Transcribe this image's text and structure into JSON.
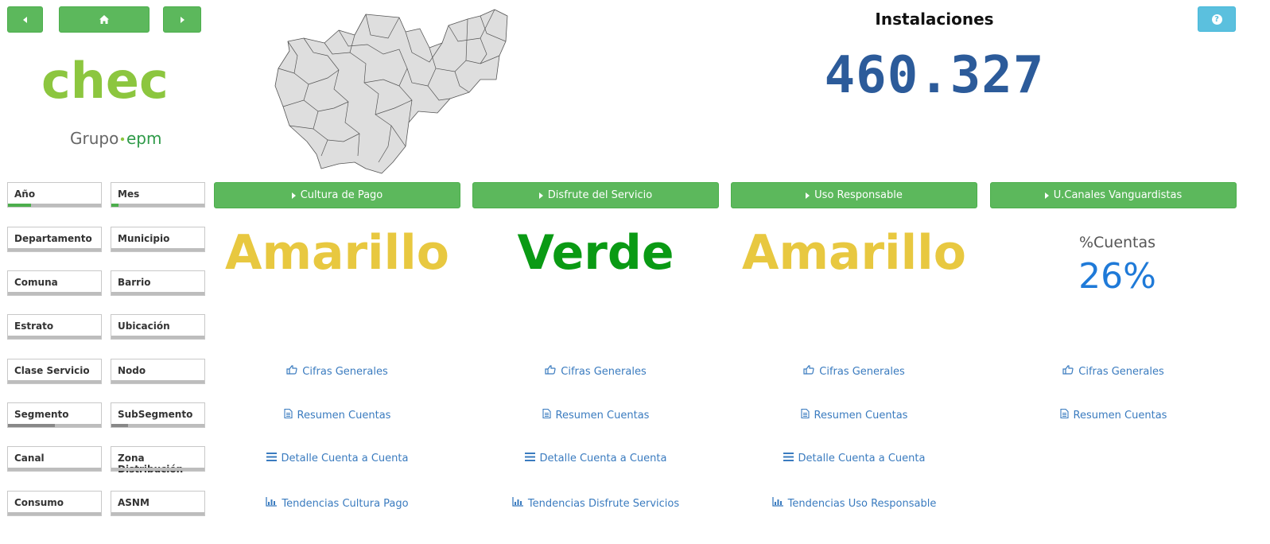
{
  "nav": {
    "back_icon": "caret-left-icon",
    "home_icon": "home-icon",
    "forward_icon": "caret-right-icon",
    "help_icon": "question-circle-icon"
  },
  "brand": {
    "logo_text": "chec",
    "group_text": "Grupo",
    "group_suffix": "epm",
    "colors": {
      "lime": "#8cc63f",
      "green": "#009a3d",
      "dark_green": "#006b3f"
    }
  },
  "header": {
    "title": "Instalaciones",
    "kpi_value": "460.327"
  },
  "filters": [
    {
      "label": "Año",
      "selected_fraction": 0.25
    },
    {
      "label": "Mes",
      "selected_fraction": 0.08
    },
    {
      "label": "Departamento"
    },
    {
      "label": "Municipio"
    },
    {
      "label": "Comuna"
    },
    {
      "label": "Barrio"
    },
    {
      "label": "Estrato"
    },
    {
      "label": "Ubicación"
    },
    {
      "label": "Clase Servicio"
    },
    {
      "label": "Nodo"
    },
    {
      "label": "Segmento",
      "selected_fraction": 0.5
    },
    {
      "label": "SubSegmento",
      "selected_fraction": 0.18
    },
    {
      "label": "Canal"
    },
    {
      "label": "Zona Distribución"
    },
    {
      "label": "Consumo"
    },
    {
      "label": "ASNM"
    }
  ],
  "sections": [
    {
      "label": "Cultura de Pago",
      "status": "Amarillo",
      "status_color": "#e8c840",
      "links": [
        "Cifras Generales",
        "Resumen Cuentas",
        "Detalle Cuenta a Cuenta",
        "Tendencias Cultura Pago"
      ]
    },
    {
      "label": "Disfrute del Servicio",
      "status": "Verde",
      "status_color": "#0a9a14",
      "links": [
        "Cifras Generales",
        "Resumen Cuentas",
        "Detalle Cuenta a Cuenta",
        "Tendencias Disfrute Servicios"
      ]
    },
    {
      "label": "Uso Responsable",
      "status": "Amarillo",
      "status_color": "#e8c840",
      "links": [
        "Cifras Generales",
        "Resumen Cuentas",
        "Detalle Cuenta a Cuenta",
        "Tendencias Uso Responsable"
      ]
    },
    {
      "label": "U.Canales Vanguardistas",
      "pct_label": "%Cuentas",
      "pct_value": "26%",
      "links": [
        "Cifras Generales",
        "Resumen Cuentas"
      ]
    }
  ],
  "link_icons": [
    "thumbs-up-icon",
    "file-icon",
    "list-icon",
    "bar-chart-icon"
  ],
  "colors": {
    "button_green": "#5cb85c",
    "link_blue": "#3a7bbf",
    "kpi_blue": "#2c5b9a",
    "help_blue": "#5bc0de"
  }
}
